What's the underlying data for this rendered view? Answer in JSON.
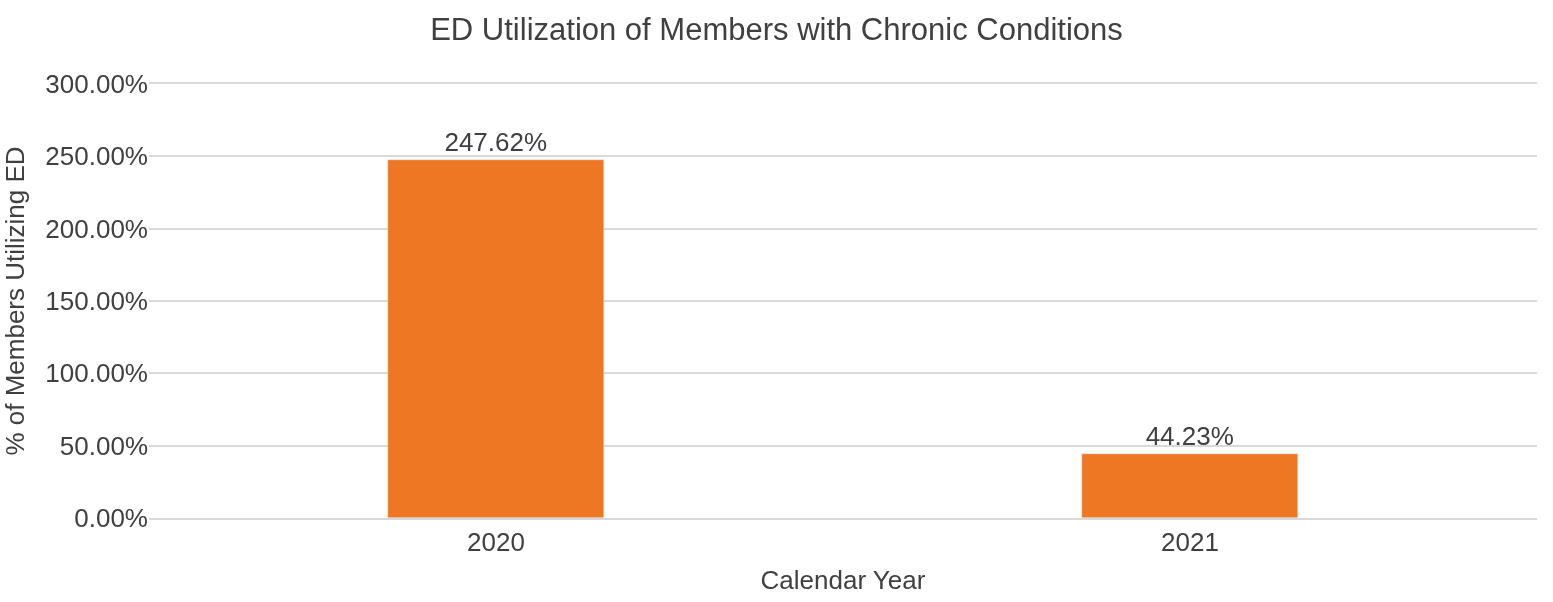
{
  "chart_data": {
    "type": "bar",
    "title": "ED Utilization of Members with Chronic Conditions",
    "xlabel": "Calendar Year",
    "ylabel": "% of Members Utilizing ED",
    "categories": [
      "2020",
      "2021"
    ],
    "values": [
      247.62,
      44.23
    ],
    "value_labels": [
      "247.62%",
      "44.23%"
    ],
    "color": "#ed7722",
    "ylim": [
      0,
      300
    ],
    "yticks": [
      {
        "value": 0,
        "label": "0.00%"
      },
      {
        "value": 50,
        "label": "50.00%"
      },
      {
        "value": 100,
        "label": "100.00%"
      },
      {
        "value": 150,
        "label": "150.00%"
      },
      {
        "value": 200,
        "label": "200.00%"
      },
      {
        "value": 250,
        "label": "250.00%"
      },
      {
        "value": 300,
        "label": "300.00%"
      }
    ],
    "grid": "y"
  }
}
